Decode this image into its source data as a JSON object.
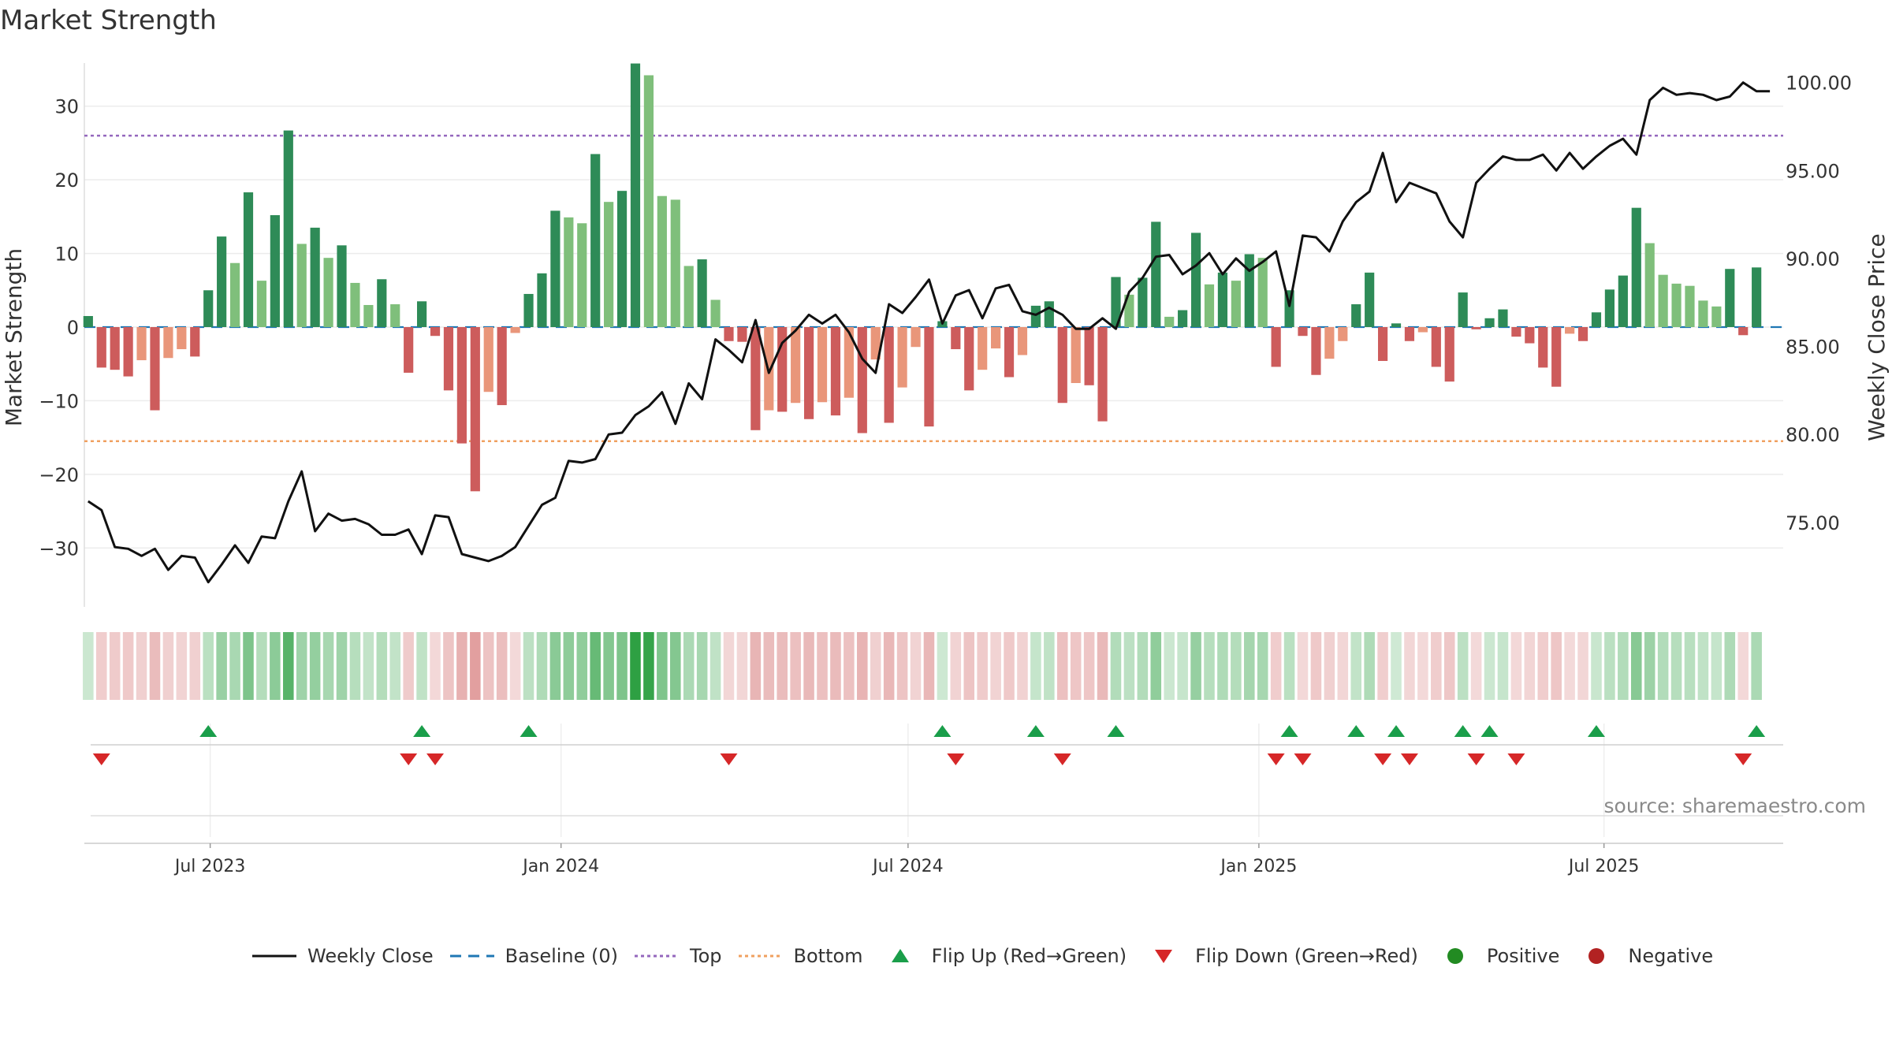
{
  "title": "Market Strength",
  "source": "source: sharemaestro.com",
  "chart_data": {
    "type": "bar",
    "title": "Market Strength",
    "ylabel": "Market Strength",
    "y2label": "Weekly Close Price",
    "ylim": [
      -38,
      38
    ],
    "y2lim": [
      70.2,
      102.0
    ],
    "yticks": [
      -30,
      -20,
      -10,
      0,
      10,
      20,
      30
    ],
    "yticklabels": [
      "−30",
      "−20",
      "−10",
      "0",
      "10",
      "20",
      "30"
    ],
    "y2ticks": [
      75,
      80,
      85,
      90,
      95,
      100
    ],
    "y2ticklabels": [
      "75.00",
      "80.00",
      "85.00",
      "90.00",
      "95.00",
      "100.00"
    ],
    "xlim": [
      "2023-04-26",
      "2025-10-03"
    ],
    "xticks": [
      "2023-07-01",
      "2024-01-01",
      "2024-07-01",
      "2025-01-01",
      "2025-07-01"
    ],
    "xticklabels": [
      "Jul 2023",
      "Jan 2024",
      "Jul 2024",
      "Jan 2025",
      "Jul 2025"
    ],
    "start_date": "2023-04-28",
    "top_level": 26,
    "bottom_level": -15.5,
    "baseline": 0,
    "grid": true,
    "legend_position": "bottom",
    "colors": {
      "strong_green": "#2e8b57",
      "light_green": "#7fbf7b",
      "strong_red": "#cd5c5c",
      "light_red": "#e9967a",
      "price_line": "#111111",
      "top": "#9467bd",
      "bottom": "#f0a060",
      "baseline": "#1f77b4",
      "flip_up": "#1a9e4a",
      "flip_down": "#d62728",
      "positive": "#228b22",
      "negative": "#b22222"
    },
    "series": [
      {
        "name": "Market Strength",
        "values": [
          1.5,
          -5.5,
          -5.8,
          -6.7,
          -4.5,
          -11.3,
          -4.2,
          -3.0,
          -4.0,
          5.0,
          12.3,
          8.7,
          18.3,
          6.3,
          15.2,
          26.7,
          11.3,
          13.5,
          9.4,
          11.1,
          6.0,
          3.0,
          6.5,
          3.1,
          -6.2,
          3.5,
          -1.2,
          -8.6,
          -15.8,
          -22.3,
          -8.8,
          -10.6,
          -0.8,
          4.5,
          7.3,
          15.8,
          14.9,
          14.1,
          23.5,
          17.0,
          18.5,
          35.8,
          34.2,
          17.8,
          17.3,
          8.3,
          9.2,
          3.7,
          -1.9,
          -2.0,
          -14.0,
          -11.3,
          -11.5,
          -10.3,
          -12.5,
          -10.2,
          -12.0,
          -9.6,
          -14.4,
          -4.4,
          -13.0,
          -8.2,
          -2.7,
          -13.5,
          0.8,
          -3.0,
          -8.6,
          -5.8,
          -2.9,
          -6.8,
          -3.8,
          2.9,
          3.5,
          -10.3,
          -7.6,
          -7.9,
          -12.8,
          6.8,
          4.4,
          6.7,
          14.3,
          1.4,
          2.3,
          12.8,
          5.8,
          7.4,
          6.3,
          9.9,
          9.4,
          -5.4,
          5.0,
          -1.2,
          -6.5,
          -4.3,
          -1.9,
          3.1,
          7.4,
          -4.6,
          0.5,
          -1.9,
          -0.7,
          -5.4,
          -7.4,
          4.7,
          -0.3,
          1.2,
          2.4,
          -1.3,
          -2.2,
          -5.5,
          -8.1,
          -0.9,
          -1.9,
          2.0,
          5.1,
          7.0,
          16.2,
          11.4,
          7.1,
          5.9,
          5.6,
          3.6,
          2.8,
          7.9,
          -1.1,
          8.1
        ]
      },
      {
        "name": "Weekly Close",
        "values": [
          76.2,
          75.7,
          73.6,
          73.5,
          73.1,
          73.5,
          72.3,
          73.1,
          73.0,
          71.6,
          72.6,
          73.7,
          72.7,
          74.2,
          74.1,
          76.2,
          77.9,
          74.5,
          75.5,
          75.1,
          75.2,
          74.9,
          74.3,
          74.3,
          74.6,
          73.2,
          75.4,
          75.3,
          73.2,
          73.0,
          72.8,
          73.1,
          73.6,
          74.8,
          76.0,
          76.4,
          78.5,
          78.4,
          78.6,
          80.0,
          80.1,
          81.1,
          81.6,
          82.4,
          80.6,
          82.9,
          82.0,
          85.4,
          84.8,
          84.1,
          86.5,
          83.5,
          85.2,
          85.9,
          86.8,
          86.3,
          86.8,
          85.8,
          84.3,
          83.5,
          87.4,
          86.9,
          87.8,
          88.8,
          86.3,
          87.9,
          88.2,
          86.6,
          88.3,
          88.5,
          87.0,
          86.8,
          87.2,
          86.8,
          86.0,
          86.0,
          86.6,
          86.0,
          88.1,
          88.9,
          90.1,
          90.2,
          89.1,
          89.6,
          90.3,
          89.1,
          90.0,
          89.3,
          89.8,
          90.4,
          87.3,
          91.3,
          91.2,
          90.4,
          92.1,
          93.2,
          93.8,
          96.0,
          93.2,
          94.3,
          94.0,
          93.7,
          92.1,
          91.2,
          94.3,
          95.1,
          95.8,
          95.6,
          95.6,
          95.9,
          95.0,
          96.0,
          95.1,
          95.8,
          96.4,
          96.8,
          95.9,
          99.0,
          99.7,
          99.3,
          99.4,
          99.3,
          99.0,
          99.2,
          100.0,
          99.5,
          99.5
        ]
      }
    ],
    "legend": {
      "weekly_close": "Weekly Close",
      "baseline": "Baseline (0)",
      "top": "Top",
      "bottom": "Bottom",
      "flip_up": "Flip Up (Red→Green)",
      "flip_down": "Flip Down (Green→Red)",
      "positive": "Positive",
      "negative": "Negative"
    }
  }
}
